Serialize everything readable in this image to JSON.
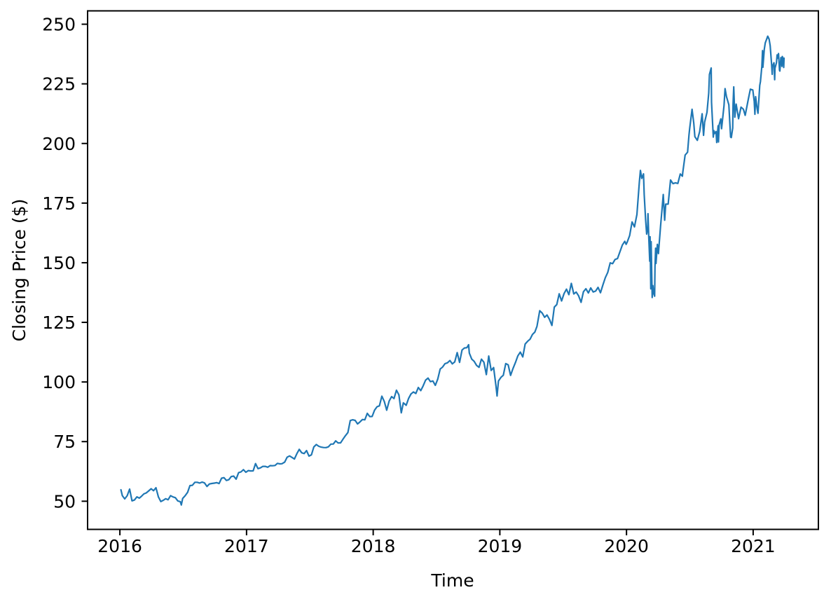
{
  "chart_data": {
    "type": "line",
    "title": "",
    "xlabel": "Time",
    "ylabel": "Closing Price ($)",
    "x_ticks": [
      2016,
      2017,
      2018,
      2019,
      2020,
      2021
    ],
    "y_ticks": [
      50,
      75,
      100,
      125,
      150,
      175,
      200,
      225,
      250
    ],
    "xlim": [
      2015.745,
      2021.515
    ],
    "ylim": [
      38.2,
      255.6
    ],
    "grid": false,
    "legend": null,
    "background": "#ffffff",
    "axis_color": "#000000",
    "line_color": "#1f77b4",
    "series": [
      {
        "name": "closing-price",
        "x": [
          "2016-01-04",
          "2016-01-08",
          "2016-01-15",
          "2016-01-22",
          "2016-01-29",
          "2016-02-05",
          "2016-02-12",
          "2016-02-19",
          "2016-02-26",
          "2016-03-04",
          "2016-03-11",
          "2016-03-18",
          "2016-03-24",
          "2016-04-01",
          "2016-04-08",
          "2016-04-15",
          "2016-04-22",
          "2016-04-29",
          "2016-05-06",
          "2016-05-13",
          "2016-05-20",
          "2016-05-27",
          "2016-06-03",
          "2016-06-10",
          "2016-06-17",
          "2016-06-24",
          "2016-06-27",
          "2016-07-01",
          "2016-07-08",
          "2016-07-15",
          "2016-07-22",
          "2016-07-29",
          "2016-08-05",
          "2016-08-12",
          "2016-08-19",
          "2016-08-26",
          "2016-09-02",
          "2016-09-09",
          "2016-09-16",
          "2016-09-23",
          "2016-09-30",
          "2016-10-07",
          "2016-10-14",
          "2016-10-21",
          "2016-10-28",
          "2016-11-04",
          "2016-11-11",
          "2016-11-18",
          "2016-11-25",
          "2016-12-02",
          "2016-12-09",
          "2016-12-16",
          "2016-12-23",
          "2016-12-30",
          "2017-01-06",
          "2017-01-13",
          "2017-01-20",
          "2017-01-27",
          "2017-02-03",
          "2017-02-10",
          "2017-02-17",
          "2017-02-24",
          "2017-03-03",
          "2017-03-10",
          "2017-03-17",
          "2017-03-24",
          "2017-03-31",
          "2017-04-07",
          "2017-04-13",
          "2017-04-21",
          "2017-04-28",
          "2017-05-05",
          "2017-05-12",
          "2017-05-19",
          "2017-05-26",
          "2017-06-02",
          "2017-06-09",
          "2017-06-16",
          "2017-06-23",
          "2017-06-30",
          "2017-07-07",
          "2017-07-14",
          "2017-07-21",
          "2017-07-28",
          "2017-08-04",
          "2017-08-11",
          "2017-08-18",
          "2017-08-25",
          "2017-09-01",
          "2017-09-08",
          "2017-09-15",
          "2017-09-22",
          "2017-09-29",
          "2017-10-06",
          "2017-10-13",
          "2017-10-20",
          "2017-10-27",
          "2017-11-03",
          "2017-11-10",
          "2017-11-17",
          "2017-11-24",
          "2017-12-01",
          "2017-12-08",
          "2017-12-15",
          "2017-12-22",
          "2017-12-29",
          "2018-01-05",
          "2018-01-12",
          "2018-01-19",
          "2018-01-26",
          "2018-02-02",
          "2018-02-09",
          "2018-02-16",
          "2018-02-23",
          "2018-03-02",
          "2018-03-09",
          "2018-03-16",
          "2018-03-23",
          "2018-03-29",
          "2018-04-06",
          "2018-04-13",
          "2018-04-20",
          "2018-04-27",
          "2018-05-04",
          "2018-05-11",
          "2018-05-18",
          "2018-05-25",
          "2018-06-01",
          "2018-06-08",
          "2018-06-15",
          "2018-06-22",
          "2018-06-29",
          "2018-07-06",
          "2018-07-13",
          "2018-07-20",
          "2018-07-27",
          "2018-08-03",
          "2018-08-10",
          "2018-08-17",
          "2018-08-24",
          "2018-08-31",
          "2018-09-07",
          "2018-09-14",
          "2018-09-21",
          "2018-09-28",
          "2018-10-03",
          "2018-10-05",
          "2018-10-12",
          "2018-10-19",
          "2018-10-26",
          "2018-11-02",
          "2018-11-09",
          "2018-11-16",
          "2018-11-23",
          "2018-11-30",
          "2018-12-07",
          "2018-12-14",
          "2018-12-21",
          "2018-12-24",
          "2018-12-28",
          "2019-01-04",
          "2019-01-11",
          "2019-01-18",
          "2019-01-25",
          "2019-02-01",
          "2019-02-08",
          "2019-02-15",
          "2019-02-22",
          "2019-03-01",
          "2019-03-08",
          "2019-03-15",
          "2019-03-22",
          "2019-03-29",
          "2019-04-05",
          "2019-04-12",
          "2019-04-18",
          "2019-04-26",
          "2019-05-03",
          "2019-05-10",
          "2019-05-17",
          "2019-05-24",
          "2019-05-31",
          "2019-06-07",
          "2019-06-14",
          "2019-06-21",
          "2019-06-28",
          "2019-07-05",
          "2019-07-12",
          "2019-07-19",
          "2019-07-26",
          "2019-08-02",
          "2019-08-09",
          "2019-08-16",
          "2019-08-23",
          "2019-08-30",
          "2019-09-06",
          "2019-09-13",
          "2019-09-20",
          "2019-09-27",
          "2019-10-04",
          "2019-10-11",
          "2019-10-18",
          "2019-10-25",
          "2019-11-01",
          "2019-11-08",
          "2019-11-15",
          "2019-11-22",
          "2019-11-29",
          "2019-12-06",
          "2019-12-13",
          "2019-12-20",
          "2019-12-27",
          "2019-12-31",
          "2020-01-03",
          "2020-01-10",
          "2020-01-17",
          "2020-01-24",
          "2020-01-31",
          "2020-02-07",
          "2020-02-10",
          "2020-02-14",
          "2020-02-19",
          "2020-02-21",
          "2020-02-25",
          "2020-02-28",
          "2020-03-03",
          "2020-03-04",
          "2020-03-06",
          "2020-03-09",
          "2020-03-10",
          "2020-03-12",
          "2020-03-13",
          "2020-03-16",
          "2020-03-18",
          "2020-03-20",
          "2020-03-23",
          "2020-03-24",
          "2020-03-26",
          "2020-03-27",
          "2020-03-31",
          "2020-04-03",
          "2020-04-09",
          "2020-04-14",
          "2020-04-17",
          "2020-04-21",
          "2020-04-24",
          "2020-05-01",
          "2020-05-08",
          "2020-05-15",
          "2020-05-22",
          "2020-05-29",
          "2020-06-05",
          "2020-06-11",
          "2020-06-12",
          "2020-06-19",
          "2020-06-26",
          "2020-06-30",
          "2020-07-02",
          "2020-07-09",
          "2020-07-14",
          "2020-07-17",
          "2020-07-24",
          "2020-07-31",
          "2020-08-07",
          "2020-08-11",
          "2020-08-14",
          "2020-08-21",
          "2020-08-26",
          "2020-08-28",
          "2020-09-02",
          "2020-09-03",
          "2020-09-04",
          "2020-09-08",
          "2020-09-10",
          "2020-09-11",
          "2020-09-16",
          "2020-09-18",
          "2020-09-22",
          "2020-09-23",
          "2020-09-25",
          "2020-09-30",
          "2020-10-02",
          "2020-10-09",
          "2020-10-12",
          "2020-10-16",
          "2020-10-23",
          "2020-10-28",
          "2020-10-30",
          "2020-11-03",
          "2020-11-04",
          "2020-11-06",
          "2020-11-09",
          "2020-11-13",
          "2020-11-20",
          "2020-11-27",
          "2020-12-04",
          "2020-12-09",
          "2020-12-11",
          "2020-12-18",
          "2020-12-24",
          "2020-12-31",
          "2021-01-04",
          "2021-01-06",
          "2021-01-08",
          "2021-01-12",
          "2021-01-15",
          "2021-01-20",
          "2021-01-22",
          "2021-01-26",
          "2021-01-28",
          "2021-01-29",
          "2021-02-02",
          "2021-02-05",
          "2021-02-09",
          "2021-02-12",
          "2021-02-16",
          "2021-02-19",
          "2021-02-23",
          "2021-02-25",
          "2021-02-26",
          "2021-03-02",
          "2021-03-04",
          "2021-03-05",
          "2021-03-09",
          "2021-03-11",
          "2021-03-12",
          "2021-03-15",
          "2021-03-18",
          "2021-03-19",
          "2021-03-22",
          "2021-03-24",
          "2021-03-25",
          "2021-03-26",
          "2021-03-29",
          "2021-03-30",
          "2021-03-31"
        ],
        "y": [
          54.8,
          52.33,
          50.99,
          52.29,
          55.09,
          50.16,
          50.5,
          51.82,
          51.3,
          52.03,
          53.07,
          53.49,
          54.21,
          55.23,
          54.42,
          55.65,
          51.78,
          49.87,
          50.39,
          51.08,
          50.62,
          52.32,
          51.79,
          51.48,
          50.13,
          49.83,
          48.43,
          51.16,
          52.3,
          53.7,
          56.57,
          56.68,
          57.94,
          57.94,
          57.62,
          58.03,
          57.67,
          56.21,
          57.25,
          57.43,
          57.6,
          57.8,
          57.42,
          59.66,
          59.87,
          58.71,
          59.02,
          60.35,
          60.53,
          59.25,
          61.97,
          62.3,
          63.24,
          62.14,
          62.84,
          62.7,
          62.74,
          65.78,
          63.68,
          64.0,
          64.62,
          64.62,
          64.25,
          64.93,
          64.87,
          64.98,
          65.86,
          65.68,
          65.74,
          66.4,
          68.46,
          69.0,
          68.38,
          67.69,
          69.96,
          71.76,
          70.32,
          70.0,
          71.21,
          68.93,
          69.46,
          72.78,
          73.79,
          73.04,
          72.68,
          72.5,
          72.49,
          72.82,
          73.94,
          73.98,
          75.31,
          74.41,
          74.49,
          76.0,
          77.49,
          78.81,
          83.81,
          84.14,
          83.87,
          82.4,
          83.26,
          84.26,
          84.16,
          86.85,
          85.51,
          85.54,
          88.19,
          89.6,
          90.0,
          94.06,
          91.78,
          88.18,
          92.0,
          93.86,
          93.05,
          96.54,
          94.6,
          87.08,
          91.27,
          90.23,
          93.08,
          95.0,
          95.82,
          95.16,
          97.7,
          96.36,
          98.36,
          100.79,
          101.63,
          100.13,
          100.41,
          98.61,
          101.16,
          105.43,
          106.27,
          107.68,
          108.04,
          109.0,
          107.58,
          108.4,
          112.33,
          108.21,
          113.37,
          114.26,
          114.37,
          115.61,
          112.13,
          109.57,
          108.66,
          106.96,
          106.16,
          109.57,
          108.29,
          103.11,
          110.89,
          104.82,
          106.03,
          98.23,
          94.13,
          100.39,
          101.93,
          102.8,
          107.71,
          107.17,
          102.78,
          105.67,
          108.22,
          110.97,
          112.53,
          110.51,
          115.91,
          117.05,
          117.94,
          119.89,
          120.95,
          123.37,
          129.89,
          128.9,
          127.13,
          128.07,
          126.24,
          123.68,
          131.4,
          132.45,
          136.97,
          133.96,
          137.06,
          138.9,
          136.62,
          141.34,
          136.9,
          137.71,
          136.13,
          133.39,
          137.86,
          139.1,
          137.32,
          139.44,
          137.73,
          138.12,
          139.68,
          137.41,
          140.73,
          143.72,
          145.96,
          149.97,
          149.59,
          151.38,
          151.75,
          154.53,
          157.41,
          158.96,
          157.7,
          158.62,
          161.34,
          167.1,
          165.04,
          170.23,
          183.89,
          188.7,
          185.35,
          187.28,
          178.59,
          168.07,
          162.01,
          164.51,
          170.55,
          161.57,
          150.62,
          160.92,
          139.06,
          158.83,
          135.42,
          140.4,
          137.35,
          135.98,
          148.34,
          156.11,
          149.7,
          157.71,
          153.83,
          165.13,
          173.7,
          178.6,
          167.82,
          174.55,
          174.57,
          184.68,
          183.16,
          183.51,
          183.25,
          187.2,
          186.27,
          187.74,
          195.15,
          196.33,
          203.51,
          206.26,
          214.32,
          208.35,
          202.88,
          201.3,
          205.01,
          212.48,
          203.38,
          208.9,
          213.02,
          221.15,
          228.91,
          231.65,
          217.3,
          214.25,
          202.66,
          205.37,
          204.03,
          205.05,
          200.39,
          207.42,
          200.59,
          207.82,
          210.33,
          206.19,
          215.81,
          223.0,
          219.66,
          216.23,
          202.68,
          202.47,
          206.43,
          216.39,
          223.72,
          211.01,
          216.51,
          210.39,
          215.23,
          214.36,
          211.8,
          213.26,
          218.59,
          222.75,
          222.42,
          217.69,
          212.25,
          219.62,
          214.93,
          212.65,
          224.34,
          225.95,
          232.33,
          238.93,
          231.96,
          239.51,
          242.2,
          243.77,
          244.99,
          243.7,
          240.97,
          233.27,
          228.99,
          232.38,
          233.87,
          226.73,
          231.6,
          233.78,
          237.13,
          235.75,
          237.71,
          230.72,
          230.35,
          235.99,
          235.46,
          232.34,
          236.48,
          235.24,
          231.85,
          235.77
        ]
      }
    ]
  }
}
